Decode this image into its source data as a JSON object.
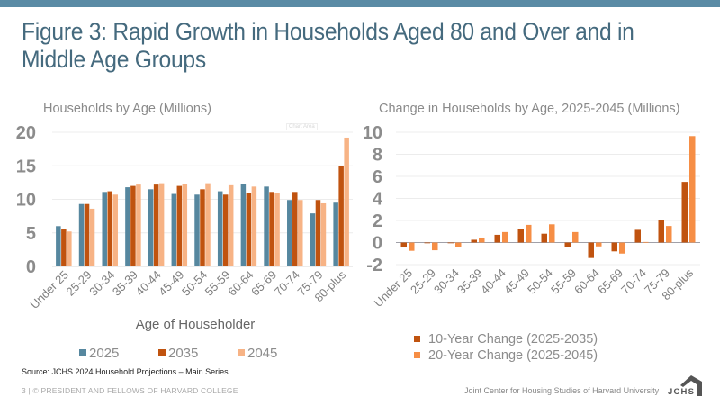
{
  "header": {
    "title": "Figure 3: Rapid Growth in Households Aged 80 and Over and in Middle Age Groups"
  },
  "colors": {
    "topbar": "#5a8ba5",
    "title": "#456a7e",
    "series_2025": "#56879f",
    "series_2035": "#c0530f",
    "series_2045": "#f7b385",
    "change_10yr": "#c0530f",
    "change_20yr": "#f68e45"
  },
  "chart_area_tag": "Chart Area",
  "chart_data": [
    {
      "type": "bar",
      "title": "Households by Age  (Millions)",
      "xlabel": "Age of Householder",
      "ylabel": "",
      "ylim": [
        0,
        20
      ],
      "yticks": [
        "0",
        "5",
        "10",
        "15",
        "20"
      ],
      "grid": true,
      "legend_position": "bottom",
      "categories": [
        "Under 25",
        "25-29",
        "30-34",
        "35-39",
        "40-44",
        "45-49",
        "50-54",
        "55-59",
        "60-64",
        "65-69",
        "70-74",
        "75-79",
        "80-plus"
      ],
      "series": [
        {
          "name": "2025",
          "values": [
            6.0,
            9.3,
            11.1,
            11.8,
            11.5,
            10.8,
            10.7,
            11.2,
            12.3,
            11.9,
            9.9,
            7.9,
            9.5
          ]
        },
        {
          "name": "2035",
          "values": [
            5.5,
            9.3,
            11.2,
            12.0,
            12.2,
            12.0,
            11.5,
            10.7,
            10.9,
            11.1,
            11.1,
            9.9,
            15.0
          ]
        },
        {
          "name": "2045",
          "values": [
            5.2,
            8.6,
            10.7,
            12.2,
            12.4,
            12.3,
            12.4,
            12.1,
            11.9,
            10.9,
            9.9,
            9.4,
            19.2
          ]
        }
      ]
    },
    {
      "type": "bar",
      "title": "Change in Households by Age, 2025-2045   (Millions)",
      "xlabel": "",
      "ylabel": "",
      "ylim": [
        -2,
        10
      ],
      "yticks": [
        "-2",
        "0",
        "2",
        "4",
        "6",
        "8",
        "10"
      ],
      "grid": true,
      "legend_position": "bottom",
      "categories": [
        "Under 25",
        "25-29",
        "30-34",
        "35-39",
        "40-44",
        "45-49",
        "50-54",
        "55-59",
        "60-64",
        "65-69",
        "70-74",
        "75-79",
        "80-plus"
      ],
      "series": [
        {
          "name": "10-Year Change (2025-2035)",
          "values": [
            -0.45,
            -0.05,
            -0.05,
            0.25,
            0.7,
            1.2,
            0.8,
            -0.4,
            -1.4,
            -0.8,
            1.15,
            2.0,
            5.5
          ]
        },
        {
          "name": "20-Year Change (2025-2045)",
          "values": [
            -0.75,
            -0.7,
            -0.4,
            0.45,
            0.95,
            1.6,
            1.65,
            0.95,
            -0.35,
            -1.0,
            0.05,
            1.5,
            9.65
          ]
        }
      ]
    }
  ],
  "source": "Source: JCHS 2024 Household Projections – Main Series",
  "footer": {
    "left": "3 | © PRESIDENT AND FELLOWS OF HARVARD COLLEGE",
    "right": "Joint Center for Housing Studies of Harvard University",
    "logo_text": "JCHS"
  }
}
